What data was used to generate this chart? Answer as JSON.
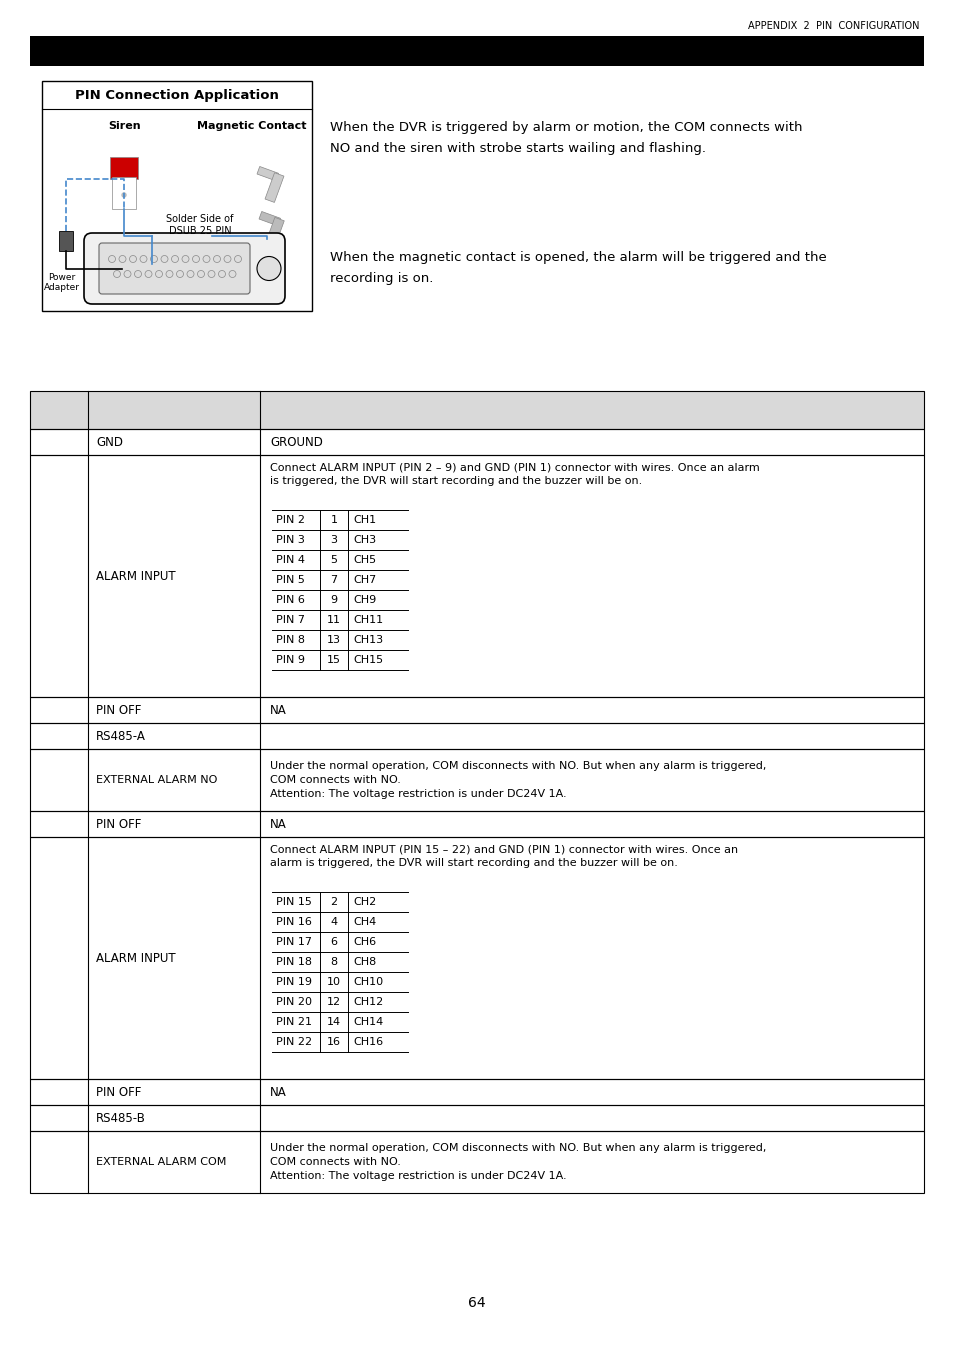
{
  "page_header": "APPENDIX  2  PIN  CONFIGURATION",
  "pin_connection_box": {
    "title": "PIN Connection Application",
    "siren_label": "Siren",
    "magnetic_label": "Magnetic Contact",
    "solder_label": "Solder Side of\nDSUB 25 PIN",
    "power_label": "Power\nAdapter"
  },
  "text_block1": "When the DVR is triggered by alarm or motion, the COM connects with\nNO and the siren with strobe starts wailing and flashing.",
  "text_block2": "When the magnetic contact is opened, the alarm will be triggered and the\nrecording is on.",
  "alarm_input_1_header": "Connect ALARM INPUT (PIN 2 – 9) and GND (PIN 1) connector with wires. Once an alarm\nis triggered, the DVR will start recording and the buzzer will be on.",
  "alarm_input_1_table": [
    [
      "PIN 2",
      "1",
      "CH1"
    ],
    [
      "PIN 3",
      "3",
      "CH3"
    ],
    [
      "PIN 4",
      "5",
      "CH5"
    ],
    [
      "PIN 5",
      "7",
      "CH7"
    ],
    [
      "PIN 6",
      "9",
      "CH9"
    ],
    [
      "PIN 7",
      "11",
      "CH11"
    ],
    [
      "PIN 8",
      "13",
      "CH13"
    ],
    [
      "PIN 9",
      "15",
      "CH15"
    ]
  ],
  "alarm_input_2_header": "Connect ALARM INPUT (PIN 15 – 22) and GND (PIN 1) connector with wires. Once an\nalarm is triggered, the DVR will start recording and the buzzer will be on.",
  "alarm_input_2_table": [
    [
      "PIN 15",
      "2",
      "CH2"
    ],
    [
      "PIN 16",
      "4",
      "CH4"
    ],
    [
      "PIN 17",
      "6",
      "CH6"
    ],
    [
      "PIN 18",
      "8",
      "CH8"
    ],
    [
      "PIN 19",
      "10",
      "CH10"
    ],
    [
      "PIN 20",
      "12",
      "CH12"
    ],
    [
      "PIN 21",
      "14",
      "CH14"
    ],
    [
      "PIN 22",
      "16",
      "CH16"
    ]
  ],
  "ext_alarm_no_text": "Under the normal operation, COM disconnects with NO. But when any alarm is triggered,\nCOM connects with NO.\nAttention: The voltage restriction is under DC24V 1A.",
  "ext_alarm_com_text": "Under the normal operation, COM disconnects with NO. But when any alarm is triggered,\nCOM connects with NO.\nAttention: The voltage restriction is under DC24V 1A.",
  "page_number": "64",
  "header_bg": "#d9d9d9",
  "bg_color": "#ffffff"
}
